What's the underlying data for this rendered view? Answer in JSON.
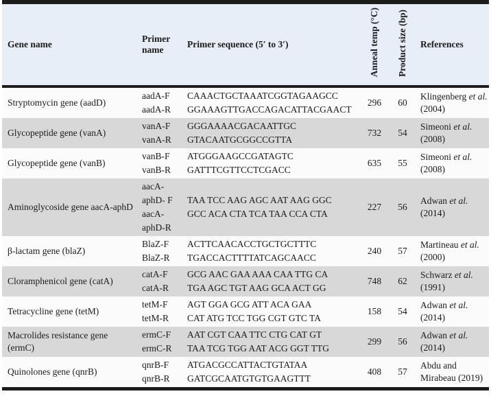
{
  "colors": {
    "border": "#1c1c1c",
    "header_bg": "#e8eef7",
    "shaded_row_bg": "#d8d8d8",
    "plain_row_bg": "#fbfbfb"
  },
  "table": {
    "header": {
      "gene": "Gene name",
      "primer_name": "Primer name",
      "sequence": "Primer sequence (5′ to 3′)",
      "anneal_temp": "Anneal temp (°C)",
      "product_size": "Product size (bp)",
      "references": "References"
    },
    "rows": [
      {
        "gene": "Stryptomycin gene (aadD)",
        "primers": [
          {
            "name": "aadA-F",
            "seq": "CAAACTGCTAAATCGGTAGAAGCC"
          },
          {
            "name": "aadA-R",
            "seq": "GGAAAGTTGACCAGACATTACGAACT"
          }
        ],
        "anneal_temp": "296",
        "product_size": "60",
        "reference": {
          "pre": "Klingenberg ",
          "italic": "et al.",
          "post": " (2004)"
        }
      },
      {
        "gene": "Glycopeptide gene (vanA)",
        "primers": [
          {
            "name": "vanA-F",
            "seq": "GGGAAAACGACAATTGC"
          },
          {
            "name": "vanA-R",
            "seq": "GTACAATGCGGCCGTTA"
          }
        ],
        "anneal_temp": "732",
        "product_size": "54",
        "reference": {
          "pre": "Simeoni ",
          "italic": "et al.",
          "post": " (2008)"
        }
      },
      {
        "gene": "Glycopeptide gene (vanB)",
        "primers": [
          {
            "name": "vanB-F",
            "seq": "ATGGGAAGCCGATAGTC"
          },
          {
            "name": "vanB-R",
            "seq": "GATTTCGTTCCTCGACC"
          }
        ],
        "anneal_temp": "635",
        "product_size": "55",
        "reference": {
          "pre": "Simeoni ",
          "italic": "et al.",
          "post": " (2008)"
        }
      },
      {
        "gene": "Aminoglycoside gene aacA-aphD",
        "primers": [
          {
            "name": "aacA-aphD- F",
            "seq": "TAA TCC AAG AGC AAT AAG GGC"
          },
          {
            "name": "aacA-aphD-R",
            "seq": "GCC ACA CTA TCA TAA CCA CTA"
          }
        ],
        "anneal_temp": "227",
        "product_size": "56",
        "reference": {
          "pre": "Adwan ",
          "italic": "et al.",
          "post": " (2014)"
        }
      },
      {
        "gene": "β-lactam gene (blaZ)",
        "primers": [
          {
            "name": "BlaZ-F",
            "seq": "ACTTCAACACCTGCTGCTTTC"
          },
          {
            "name": "BlaZ-R",
            "seq": "TGACCACTTTTATCAGCAACC"
          }
        ],
        "anneal_temp": "240",
        "product_size": "57",
        "reference": {
          "pre": "Martineau ",
          "italic": "et al.",
          "post": " (2000)"
        }
      },
      {
        "gene": "Cloramphenicol gene (catA)",
        "primers": [
          {
            "name": "catA-F",
            "seq": "GCG AAC GAA AAA CAA TTG CA"
          },
          {
            "name": "catA-R",
            "seq": "TGA AGC TGT AAG GCA ACT GG"
          }
        ],
        "anneal_temp": "748",
        "product_size": "62",
        "reference": {
          "pre": "Schwarz ",
          "italic": "et al.",
          "post": " (1991)"
        }
      },
      {
        "gene": "Tetracycline gene (tetM)",
        "primers": [
          {
            "name": "tetM-F",
            "seq": "AGT GGA GCG ATT ACA GAA"
          },
          {
            "name": "tetM-R",
            "seq": "CAT ATG TCC TGG CGT GTC TA"
          }
        ],
        "anneal_temp": "158",
        "product_size": "54",
        "reference": {
          "pre": "Adwan ",
          "italic": "et al.",
          "post": " (2014)"
        }
      },
      {
        "gene": "Macrolides resistance gene (ermC)",
        "primers": [
          {
            "name": "ermC-F",
            "seq": "AAT CGT CAA TTC CTG CAT GT"
          },
          {
            "name": "ermC-R",
            "seq": "TAA TCG TGG AAT ACG GGT TTG"
          }
        ],
        "anneal_temp": "299",
        "product_size": "56",
        "reference": {
          "pre": "Adwan ",
          "italic": "et al.",
          "post": " (2014)"
        }
      },
      {
        "gene": "Quinolones gene (qnrB)",
        "primers": [
          {
            "name": "qnrB-F",
            "seq": "ATGACGCCATTACTGTATAA"
          },
          {
            "name": "qnrB-R",
            "seq": "GATCGCAATGTGTGAAGTTT"
          }
        ],
        "anneal_temp": "408",
        "product_size": "57",
        "reference": {
          "pre": "Abdu and Mirabeau ",
          "italic": "",
          "post": "(2019)"
        }
      }
    ]
  }
}
